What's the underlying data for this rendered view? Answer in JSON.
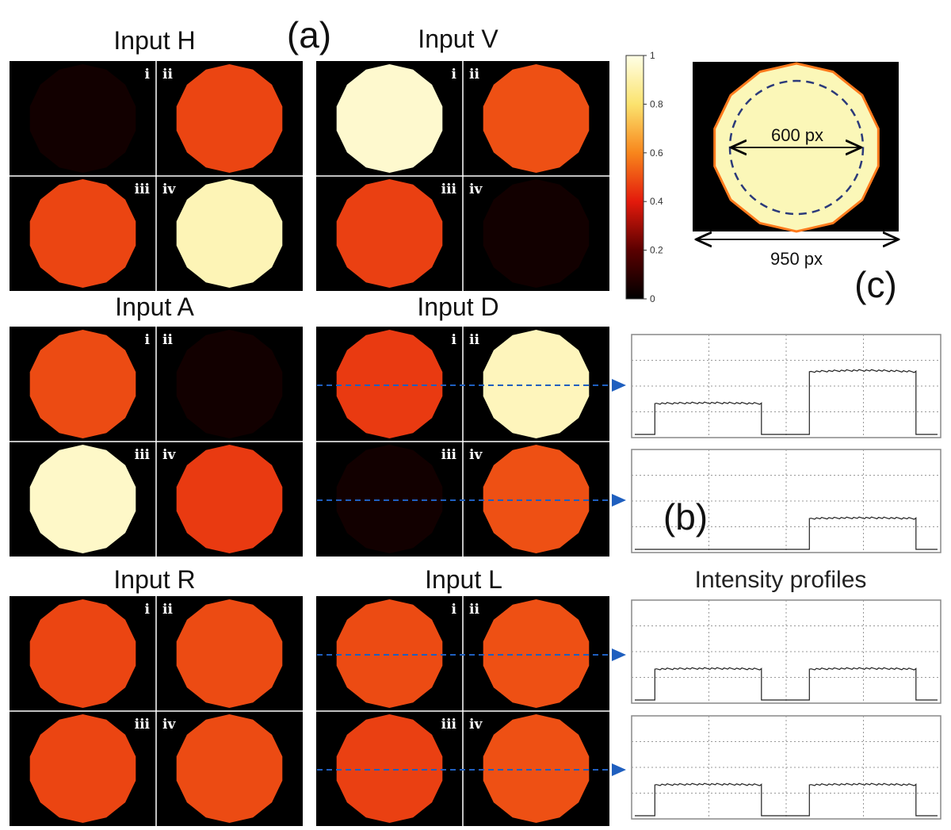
{
  "panel_a": {
    "label": "(a)",
    "quadrant_labels": [
      "i",
      "ii",
      "iii",
      "iv"
    ],
    "groups": [
      {
        "id": "H",
        "title": "Input H",
        "intensities": [
          0.04,
          0.48,
          0.48,
          0.92
        ]
      },
      {
        "id": "V",
        "title": "Input V",
        "intensities": [
          0.96,
          0.5,
          0.47,
          0.04
        ]
      },
      {
        "id": "A",
        "title": "Input A",
        "intensities": [
          0.49,
          0.04,
          0.95,
          0.46
        ]
      },
      {
        "id": "D",
        "title": "Input D",
        "intensities": [
          0.46,
          0.93,
          0.04,
          0.5
        ]
      },
      {
        "id": "R",
        "title": "Input R",
        "intensities": [
          0.48,
          0.49,
          0.48,
          0.49
        ]
      },
      {
        "id": "L",
        "title": "Input L",
        "intensities": [
          0.49,
          0.5,
          0.47,
          0.5
        ]
      }
    ]
  },
  "colorbar": {
    "ticks": [
      "0",
      "0.2",
      "0.4",
      "0.6",
      "0.8",
      "1"
    ],
    "range": [
      0,
      1
    ]
  },
  "panel_b": {
    "label": "(b)",
    "caption": "Intensity profiles",
    "profiles": [
      {
        "source": "Input D",
        "row": "top (i, ii)",
        "levels": [
          0.33,
          0.67
        ]
      },
      {
        "source": "Input D",
        "row": "bottom (iii, iv)",
        "levels": [
          0.0,
          0.33
        ]
      },
      {
        "source": "Input L",
        "row": "top (i, ii)",
        "levels": [
          0.33,
          0.33
        ]
      },
      {
        "source": "Input L",
        "row": "bottom (iii, iv)",
        "levels": [
          0.33,
          0.33
        ]
      }
    ]
  },
  "panel_c": {
    "label": "(c)",
    "inner_dimension": "600 px",
    "outer_dimension": "950 px"
  },
  "colors": {
    "background": "#000000",
    "arrow": "#1f5fbf",
    "dashed_circle": "#2b3a7a"
  }
}
